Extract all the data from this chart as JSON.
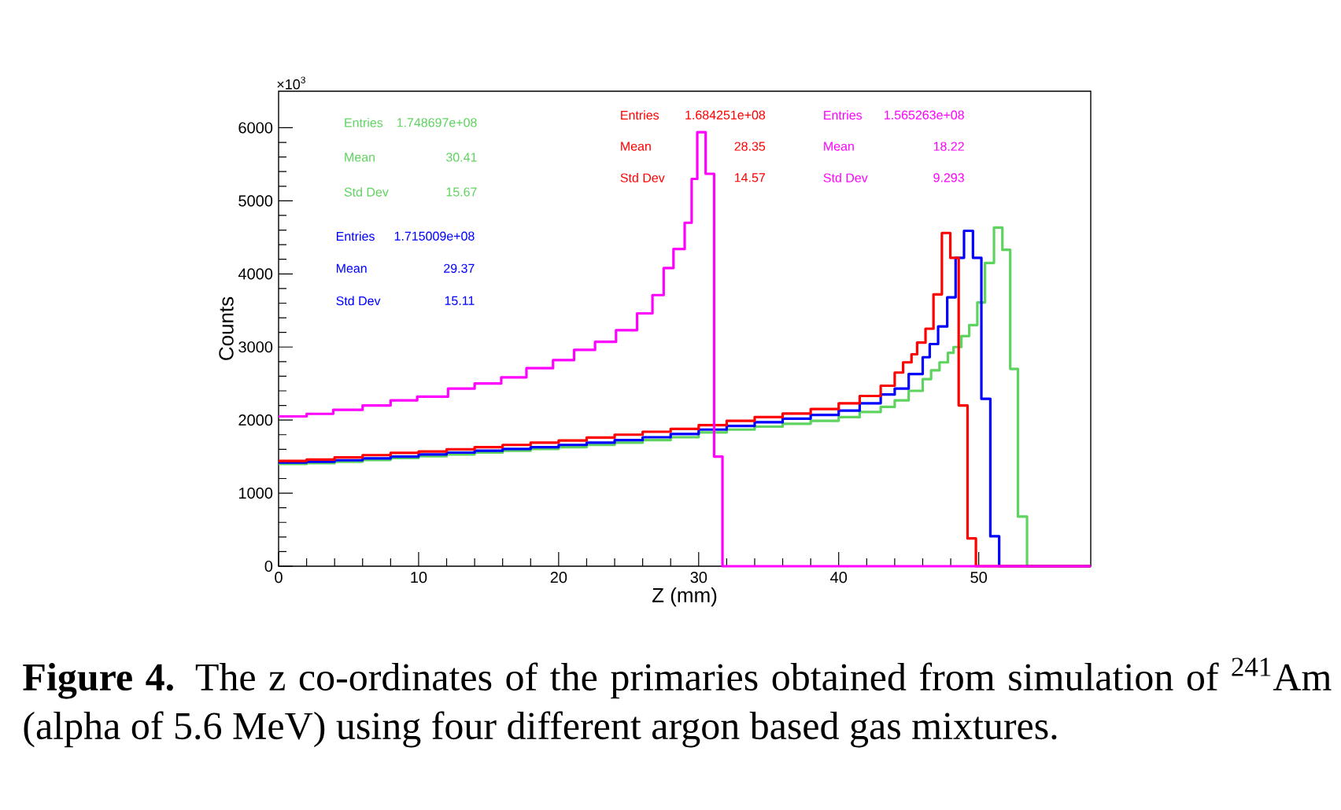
{
  "chart_data": {
    "type": "step",
    "xlabel": "Z (mm)",
    "ylabel": "Counts",
    "xlim": [
      0,
      58
    ],
    "ylim": [
      0,
      6500
    ],
    "xticks": [
      0,
      10,
      20,
      30,
      40,
      50
    ],
    "yticks": [
      0,
      1000,
      2000,
      3000,
      4000,
      5000,
      6000
    ],
    "series": [
      {
        "color": "#5fd35f",
        "x": [
          0,
          2,
          4,
          6,
          8,
          10,
          12,
          14,
          16,
          18,
          20,
          22,
          24,
          26,
          28,
          30,
          32,
          34,
          36,
          38,
          40,
          41.5,
          43,
          44,
          45,
          46,
          46.6,
          47.2,
          47.8,
          48.2,
          48.76,
          49.32,
          49.9,
          50.45,
          51.09,
          51.69,
          52.25,
          52.8,
          53.45,
          58
        ],
        "values": [
          1400,
          1410,
          1430,
          1455,
          1480,
          1505,
          1530,
          1555,
          1580,
          1605,
          1630,
          1660,
          1690,
          1725,
          1765,
          1830,
          1870,
          1910,
          1950,
          1990,
          2040,
          2110,
          2180,
          2270,
          2400,
          2560,
          2680,
          2790,
          2920,
          3000,
          3150,
          3300,
          3610,
          4150,
          4635,
          4330,
          2700,
          680,
          0,
          0
        ]
      },
      {
        "color": "#0000ff",
        "x": [
          0,
          2,
          4,
          6,
          8,
          10,
          12,
          14,
          16,
          18,
          20,
          22,
          24,
          26,
          28,
          30,
          32,
          34,
          36,
          38,
          40,
          41.5,
          43,
          44,
          45,
          46,
          46.5,
          47.1,
          47.75,
          48.35,
          48.95,
          49.59,
          50.19,
          50.83,
          51.46,
          58
        ],
        "values": [
          1420,
          1430,
          1450,
          1475,
          1500,
          1530,
          1555,
          1580,
          1605,
          1630,
          1660,
          1690,
          1725,
          1765,
          1810,
          1870,
          1920,
          1970,
          2020,
          2070,
          2130,
          2230,
          2350,
          2430,
          2630,
          2860,
          3040,
          3280,
          3680,
          4220,
          4590,
          4220,
          2290,
          410,
          0,
          0
        ]
      },
      {
        "color": "#ff0000",
        "x": [
          0,
          2,
          4,
          6,
          8,
          10,
          12,
          14,
          16,
          18,
          20,
          22,
          24,
          26,
          28,
          30,
          32,
          34,
          36,
          38,
          40,
          41.5,
          43,
          44,
          44.6,
          45.2,
          45.6,
          46.2,
          46.77,
          47.37,
          47.97,
          48.57,
          49.2,
          49.8,
          58
        ],
        "values": [
          1440,
          1460,
          1490,
          1520,
          1550,
          1570,
          1600,
          1630,
          1660,
          1690,
          1720,
          1760,
          1800,
          1840,
          1880,
          1930,
          1990,
          2040,
          2090,
          2150,
          2230,
          2330,
          2470,
          2650,
          2790,
          2900,
          3060,
          3250,
          3720,
          4560,
          4220,
          2200,
          380,
          0,
          0
        ]
      },
      {
        "color": "#ff00ff",
        "x": [
          0,
          2,
          3.9,
          6,
          8,
          9.9,
          12.1,
          14,
          15.9,
          17.7,
          19.6,
          21.1,
          22.6,
          24.1,
          25.6,
          26.7,
          27.5,
          28.2,
          29,
          29.5,
          29.9,
          30.5,
          31.1,
          31.7,
          58
        ],
        "values": [
          2050,
          2085,
          2140,
          2200,
          2270,
          2320,
          2430,
          2500,
          2585,
          2710,
          2820,
          2960,
          3070,
          3230,
          3460,
          3710,
          4080,
          4340,
          4700,
          5300,
          5940,
          5370,
          1500,
          0,
          0
        ]
      }
    ],
    "annotations": [
      "×10$^{3}$",
      "Entries",
      "1.748697e+08",
      "Mean",
      "30.41",
      "Std Dev",
      "15.67",
      "Entries",
      "1.715009e+08",
      "Mean",
      "29.37",
      "Std Dev",
      "15.11",
      "Entries",
      "1.684251e+08",
      "Mean",
      "28.35",
      "Std Dev",
      "14.57",
      "Entries",
      "1.565263e+08",
      "Mean",
      "18.22",
      "Std Dev",
      "9.293",
      "**Figure 4.** The z co-ordinates of the primaries obtained from simulation of $^{241}$Am (alpha of 5.6 MeV) using four different argon based gas mixtures."
    ]
  }
}
